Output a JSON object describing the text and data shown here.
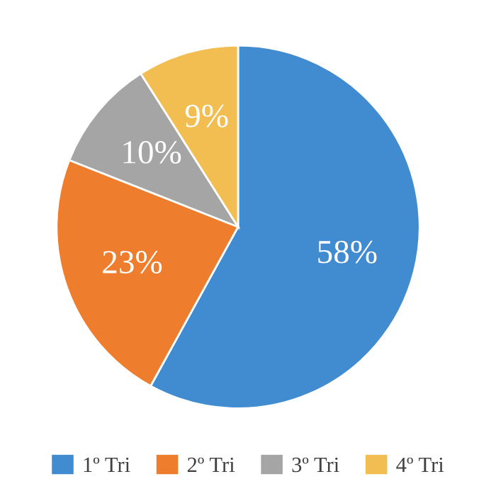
{
  "chart_data": {
    "type": "pie",
    "categories": [
      "1º Tri",
      "2º Tri",
      "3º Tri",
      "4º Tri"
    ],
    "values": [
      58,
      23,
      10,
      9
    ],
    "value_labels": [
      "58%",
      "23%",
      "10%",
      "9%"
    ],
    "colors": [
      "#418bd0",
      "#ee7d2e",
      "#a5a5a5",
      "#f2be52"
    ],
    "legend": "bottom"
  }
}
